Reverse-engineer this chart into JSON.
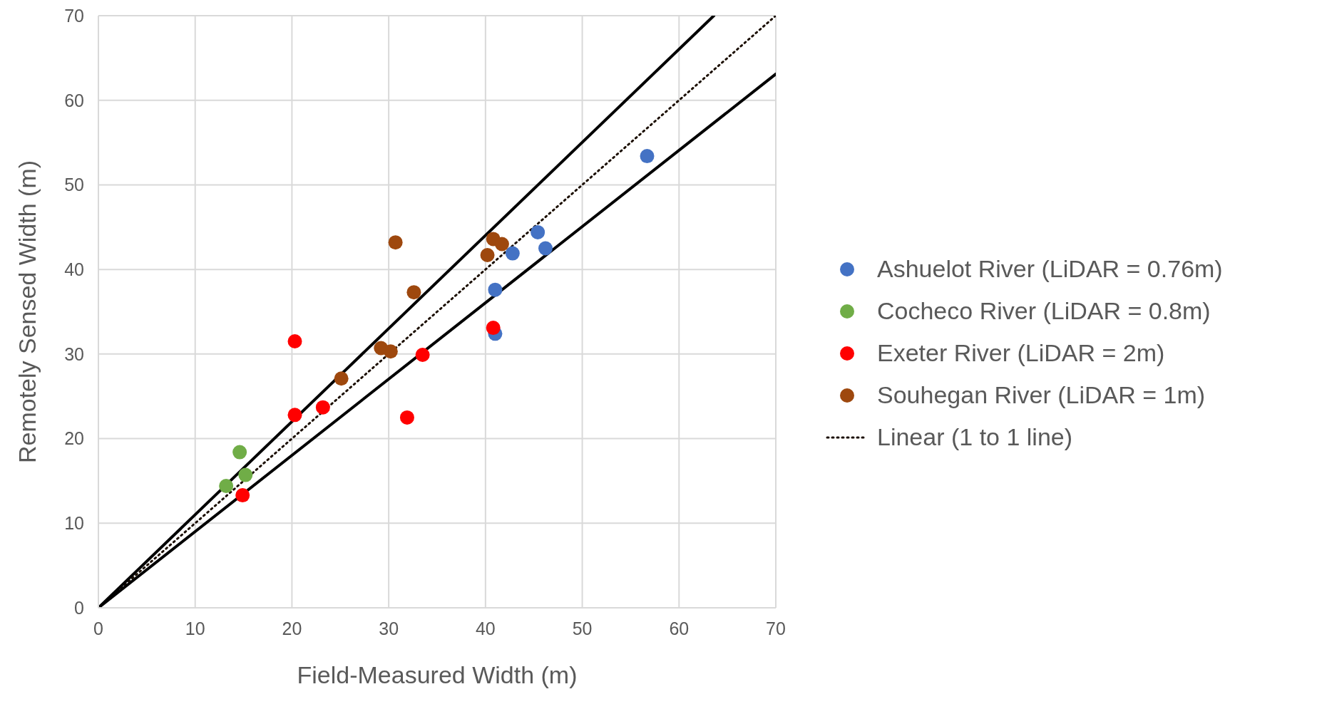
{
  "chart_data": {
    "type": "scatter",
    "xlabel": "Field-Measured Width (m)",
    "ylabel": "Remotely Sensed Width (m)",
    "xlim": [
      0,
      70
    ],
    "ylim": [
      0,
      70
    ],
    "xticks": [
      0,
      10,
      20,
      30,
      40,
      50,
      60,
      70
    ],
    "yticks": [
      0,
      10,
      20,
      30,
      40,
      50,
      60,
      70
    ],
    "grid": true,
    "legend": "right",
    "marker": "circle",
    "series": [
      {
        "name": "Ashuelot River (LiDAR = 0.76m)",
        "color": "#4472c4",
        "x": [
          56.7,
          45.4,
          46.2,
          42.8,
          41.0,
          41.0
        ],
        "values": [
          53.4,
          44.4,
          42.5,
          41.9,
          37.6,
          32.4
        ]
      },
      {
        "name": "Cocheco River (LiDAR = 0.8m)",
        "color": "#70ad47",
        "x": [
          14.6,
          15.2,
          13.2
        ],
        "values": [
          18.4,
          15.7,
          14.4
        ]
      },
      {
        "name": "Exeter River (LiDAR = 2m)",
        "color": "#ff0000",
        "x": [
          20.3,
          20.3,
          23.2,
          14.9,
          31.9,
          33.5,
          40.8
        ],
        "values": [
          31.5,
          22.8,
          23.7,
          13.3,
          22.5,
          29.9,
          33.1
        ]
      },
      {
        "name": "Souhegan River (LiDAR = 1m)",
        "color": "#9e480e",
        "x": [
          30.7,
          32.6,
          25.1,
          29.2,
          30.2,
          40.2,
          40.8,
          41.7
        ],
        "values": [
          43.2,
          37.3,
          27.1,
          30.7,
          30.3,
          41.7,
          43.6,
          43.0
        ]
      },
      {
        "name": "Linear (1 to 1 line)",
        "type": "line",
        "line_style": "dotted",
        "marker": "none",
        "color": "#1a0d00",
        "x": [
          0,
          70
        ],
        "values": [
          0,
          70
        ]
      },
      {
        "type": "line",
        "line_style": "solid",
        "marker": "none",
        "color": "#000000",
        "x": [
          0,
          63.6
        ],
        "values": [
          0,
          70
        ]
      },
      {
        "type": "line",
        "line_style": "solid",
        "marker": "none",
        "color": "#000000",
        "x": [
          0,
          70
        ],
        "values": [
          0,
          63.1
        ]
      }
    ]
  }
}
